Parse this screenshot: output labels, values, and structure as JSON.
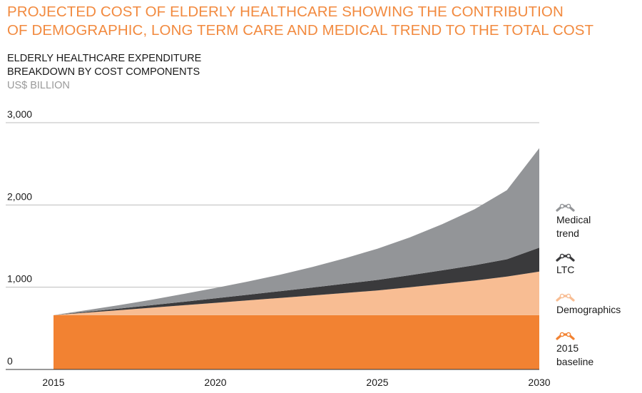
{
  "colors": {
    "title": "#f28a3f",
    "unit": "#9a9a9a",
    "baseline": "#f28232",
    "demographics": "#f8bd93",
    "ltc": "#3a3a3c",
    "medical": "#939598",
    "grid": "#bdbdbd",
    "axis": "#333333"
  },
  "header": {
    "title_line1": "PROJECTED COST OF ELDERLY HEALTHCARE SHOWING THE CONTRIBUTION",
    "title_line2": "OF DEMOGRAPHIC, LONG TERM CARE AND MEDICAL TREND TO THE TOTAL COST",
    "subtitle_line1": "ELDERLY HEALTHCARE EXPENDITURE",
    "subtitle_line2": "BREAKDOWN BY COST COMPONENTS",
    "unit": "US$ BILLION"
  },
  "chart_data": {
    "type": "area",
    "stacked": true,
    "title": "Projected cost of elderly healthcare showing the contribution of demographic, long term care and medical trend to the total cost",
    "ylabel": "US$ BILLION",
    "ylim": [
      0,
      3000
    ],
    "yticks": [
      0,
      1000,
      2000,
      3000
    ],
    "ytick_labels": [
      "0",
      "1,000",
      "2,000",
      "3,000"
    ],
    "xlim": [
      2015,
      2030
    ],
    "xticks": [
      2015,
      2020,
      2025,
      2030
    ],
    "xtick_labels": [
      "2015",
      "2020",
      "2025",
      "2030"
    ],
    "grid": true,
    "x": [
      2015,
      2016,
      2017,
      2018,
      2019,
      2020,
      2021,
      2022,
      2023,
      2024,
      2025,
      2026,
      2027,
      2028,
      2029,
      2030
    ],
    "series": [
      {
        "name": "2015 baseline",
        "legend_lines": [
          "2015",
          "baseline"
        ],
        "color_key": "baseline",
        "values": [
          660,
          660,
          660,
          660,
          660,
          660,
          660,
          660,
          660,
          660,
          660,
          660,
          660,
          660,
          660,
          660
        ]
      },
      {
        "name": "Demographics",
        "legend_lines": [
          "Demographics"
        ],
        "color_key": "demographics",
        "values": [
          0,
          30,
          60,
          90,
          120,
          150,
          180,
          210,
          240,
          270,
          300,
          340,
          380,
          420,
          470,
          530
        ]
      },
      {
        "name": "LTC",
        "legend_lines": [
          "LTC"
        ],
        "color_key": "ltc",
        "values": [
          0,
          10,
          20,
          30,
          42,
          55,
          68,
          82,
          96,
          112,
          128,
          145,
          165,
          187,
          210,
          290
        ]
      },
      {
        "name": "Medical trend",
        "legend_lines": [
          "Medical",
          "trend"
        ],
        "color_key": "medical",
        "values": [
          0,
          20,
          40,
          65,
          95,
          125,
          160,
          200,
          250,
          310,
          380,
          460,
          560,
          680,
          840,
          1210
        ]
      }
    ],
    "legend_order": [
      "Medical trend",
      "LTC",
      "Demographics",
      "2015 baseline"
    ],
    "legend_placement": "right"
  }
}
